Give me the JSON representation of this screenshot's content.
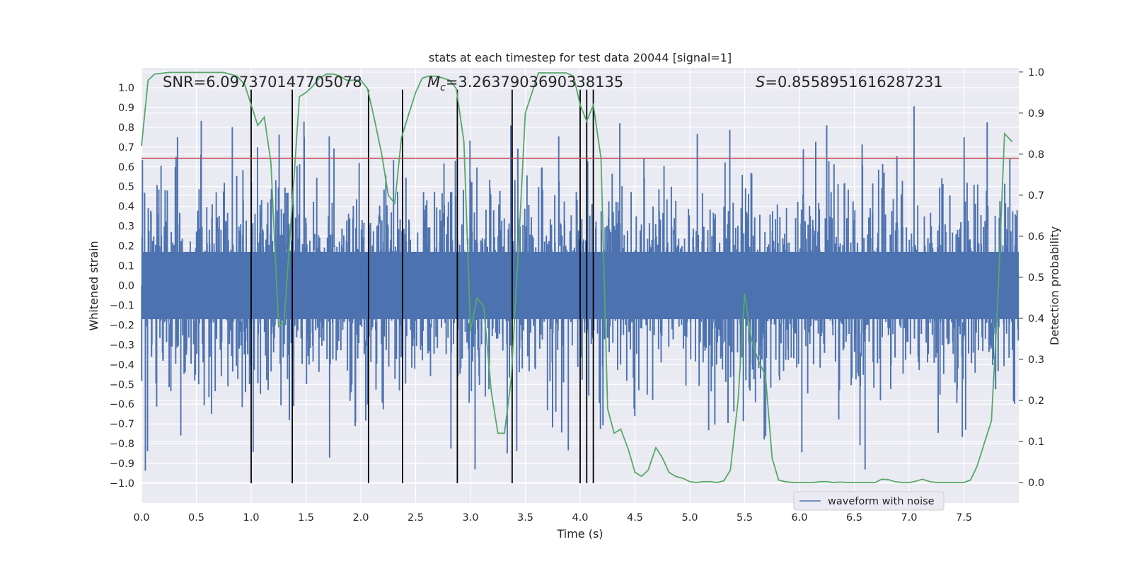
{
  "chart_data": {
    "type": "line",
    "title": "stats at each timestep for test data 20044 [signal=1]",
    "xlabel": "Time (s)",
    "ylabel": "Whitened strain",
    "y2label": "Detection probability",
    "xlim": [
      0,
      8
    ],
    "ylim": [
      -1.1,
      1.1
    ],
    "y2lim": [
      -0.05,
      1.01
    ],
    "xticks": [
      0.0,
      0.5,
      1.0,
      1.5,
      2.0,
      2.5,
      3.0,
      3.5,
      4.0,
      4.5,
      5.0,
      5.5,
      6.0,
      6.5,
      7.0,
      7.5
    ],
    "xtick_labels": [
      "0.0",
      "0.5",
      "1.0",
      "1.5",
      "2.0",
      "2.5",
      "3.0",
      "3.5",
      "4.0",
      "4.5",
      "5.0",
      "5.5",
      "6.0",
      "6.5",
      "7.0",
      "7.5"
    ],
    "yticks": [
      1.0,
      0.9,
      0.8,
      0.7,
      0.6,
      0.5,
      0.4,
      0.3,
      0.2,
      0.1,
      0.0,
      -0.1,
      -0.2,
      -0.3,
      -0.4,
      -0.5,
      -0.6,
      -0.7,
      -0.8,
      -0.9,
      -1.0
    ],
    "ytick_labels": [
      "1.0",
      "0.9",
      "0.8",
      "0.7",
      "0.6",
      "0.5",
      "0.4",
      "0.3",
      "0.2",
      "0.1",
      "0.0",
      "−0.1",
      "−0.2",
      "−0.3",
      "−0.4",
      "−0.5",
      "−0.6",
      "−0.7",
      "−0.8",
      "−0.9",
      "−1.0"
    ],
    "y2ticks": [
      1.0,
      0.9,
      0.8,
      0.7,
      0.6,
      0.5,
      0.4,
      0.3,
      0.2,
      0.1,
      0.0
    ],
    "y2tick_labels": [
      "1.0",
      "0.9",
      "0.8",
      "0.7",
      "0.6",
      "0.5",
      "0.4",
      "0.3",
      "0.2",
      "0.1",
      "0.0"
    ],
    "annotations": {
      "snr": "SNR=6.097370147705078",
      "mc_symbol": "M",
      "mc_sub": "c",
      "mc_value": "=3.2637903690338135",
      "s_symbol": "S",
      "s_value": "=0.8558951616287231"
    },
    "legend": {
      "entries": [
        "waveform with noise"
      ],
      "location": "lower-right"
    },
    "threshold": 0.79,
    "vertical_lines": [
      1.0,
      1.375,
      2.07,
      2.38,
      2.88,
      3.38,
      4.0,
      4.06,
      4.12
    ],
    "detection_probability": {
      "x": [
        0.0,
        0.06,
        0.12,
        0.25,
        0.5,
        0.75,
        0.87,
        0.94,
        1.0,
        1.06,
        1.12,
        1.18,
        1.25,
        1.3,
        1.38,
        1.44,
        1.5,
        1.56,
        1.62,
        1.69,
        1.75,
        1.81,
        1.87,
        2.0,
        2.06,
        2.12,
        2.19,
        2.25,
        2.31,
        2.37,
        2.44,
        2.5,
        2.56,
        2.62,
        2.69,
        2.75,
        2.81,
        2.87,
        2.94,
        3.0,
        3.06,
        3.12,
        3.19,
        3.25,
        3.31,
        3.37,
        3.44,
        3.5,
        3.62,
        3.75,
        3.87,
        3.94,
        4.0,
        4.06,
        4.12,
        4.19,
        4.25,
        4.31,
        4.37,
        4.44,
        4.5,
        4.56,
        4.62,
        4.69,
        4.75,
        4.81,
        4.87,
        4.94,
        5.0,
        5.06,
        5.12,
        5.19,
        5.25,
        5.31,
        5.37,
        5.44,
        5.5,
        5.56,
        5.62,
        5.69,
        5.75,
        5.81,
        5.87,
        5.94,
        6.0,
        6.06,
        6.12,
        6.19,
        6.25,
        6.31,
        6.37,
        6.44,
        6.5,
        6.56,
        6.62,
        6.69,
        6.75,
        6.81,
        6.87,
        6.94,
        7.0,
        7.06,
        7.12,
        7.19,
        7.25,
        7.31,
        7.37,
        7.44,
        7.5,
        7.56,
        7.62,
        7.69,
        7.75,
        7.81,
        7.87,
        7.94
      ],
      "y": [
        0.82,
        0.98,
        0.995,
        0.999,
        0.999,
        0.999,
        0.99,
        0.97,
        0.92,
        0.87,
        0.89,
        0.78,
        0.38,
        0.39,
        0.7,
        0.94,
        0.95,
        0.965,
        0.985,
        0.995,
        0.995,
        0.99,
        0.98,
        0.98,
        0.96,
        0.89,
        0.8,
        0.7,
        0.68,
        0.84,
        0.9,
        0.95,
        0.985,
        0.99,
        0.99,
        0.985,
        0.98,
        0.96,
        0.83,
        0.37,
        0.45,
        0.43,
        0.22,
        0.12,
        0.12,
        0.25,
        0.58,
        0.9,
        0.998,
        0.998,
        0.998,
        0.99,
        0.92,
        0.88,
        0.92,
        0.79,
        0.18,
        0.12,
        0.13,
        0.08,
        0.025,
        0.015,
        0.03,
        0.085,
        0.06,
        0.025,
        0.015,
        0.01,
        0.002,
        0.0,
        0.002,
        0.002,
        0.0,
        0.004,
        0.03,
        0.2,
        0.46,
        0.35,
        0.3,
        0.26,
        0.06,
        0.006,
        0.002,
        0.0,
        0.0,
        0.0,
        0.0,
        0.002,
        0.002,
        0.0,
        0.001,
        0.0,
        0.0,
        0.0,
        0.0,
        0.0,
        0.008,
        0.007,
        0.002,
        0.0,
        0.0,
        0.003,
        0.008,
        0.002,
        0.0,
        0.0,
        0.0,
        0.0,
        0.0,
        0.006,
        0.04,
        0.1,
        0.15,
        0.45,
        0.85,
        0.83
      ]
    }
  }
}
